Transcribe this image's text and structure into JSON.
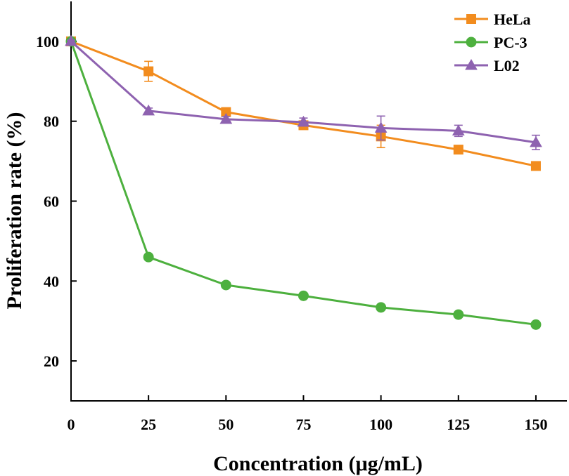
{
  "chart_data": {
    "type": "line",
    "title": "",
    "xlabel": "Concentration (μg/mL)",
    "ylabel": "Proliferation rate (%)",
    "x": [
      0,
      25,
      50,
      75,
      100,
      125,
      150
    ],
    "xlim": [
      0,
      160
    ],
    "ylim": [
      10,
      110
    ],
    "xticks": [
      0,
      25,
      50,
      75,
      100,
      125,
      150
    ],
    "yticks": [
      20,
      40,
      60,
      80,
      100
    ],
    "xtick_labels": [
      "0",
      "25",
      "50",
      "75",
      "100",
      "125",
      "150"
    ],
    "ytick_labels": [
      "20",
      "40",
      "60",
      "80",
      "100"
    ],
    "grid": false,
    "legend_position": "top-right",
    "series": [
      {
        "name": "HeLa",
        "marker": "square",
        "color": "#F28C1E",
        "values": [
          100,
          92.5,
          82.3,
          79.0,
          76.2,
          72.9,
          68.8
        ],
        "errors": [
          0.3,
          2.5,
          0.8,
          0.8,
          2.8,
          0.8,
          0.6
        ]
      },
      {
        "name": "PC-3",
        "marker": "circle",
        "color": "#4DB03E",
        "values": [
          100,
          46.0,
          39.0,
          36.3,
          33.4,
          31.6,
          29.1
        ],
        "errors": [
          0.3,
          0.5,
          0.6,
          0.6,
          0.6,
          0.6,
          0.6
        ]
      },
      {
        "name": "L02",
        "marker": "triangle",
        "color": "#8E62B0",
        "values": [
          100,
          82.6,
          80.5,
          79.8,
          78.3,
          77.6,
          74.7
        ],
        "errors": [
          0.3,
          0.7,
          0.7,
          1.0,
          3.0,
          1.4,
          1.8
        ]
      }
    ]
  }
}
